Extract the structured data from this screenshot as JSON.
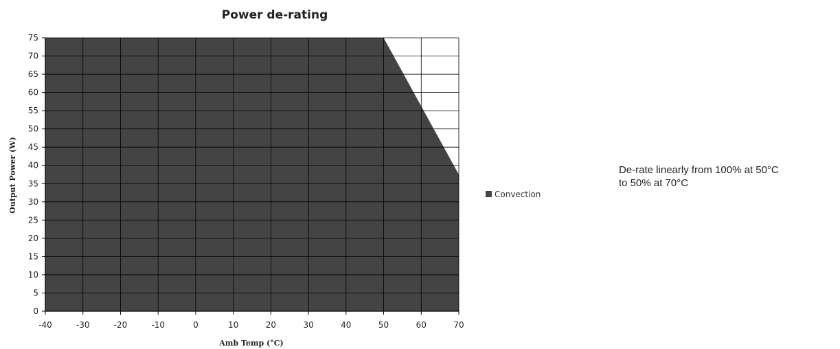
{
  "chart_data": {
    "type": "area",
    "title": "Power de-rating",
    "xlabel": "Amb Temp (°C)",
    "ylabel": "Output Power (W)",
    "xlim": [
      -40,
      70
    ],
    "ylim": [
      0,
      75
    ],
    "x_ticks": [
      -40,
      -30,
      -20,
      -10,
      0,
      10,
      20,
      30,
      40,
      50,
      60,
      70
    ],
    "y_ticks": [
      0,
      5,
      10,
      15,
      20,
      25,
      30,
      35,
      40,
      45,
      50,
      55,
      60,
      65,
      70,
      75
    ],
    "grid": true,
    "legend_position": "right",
    "series": [
      {
        "name": "Convection",
        "color": "#444444",
        "x": [
          -40,
          50,
          70
        ],
        "y": [
          75,
          75,
          37.5
        ]
      }
    ]
  },
  "annotation": {
    "line1": "De-rate linearly from 100% at 50°C",
    "line2": "to 50% at 70°C"
  }
}
